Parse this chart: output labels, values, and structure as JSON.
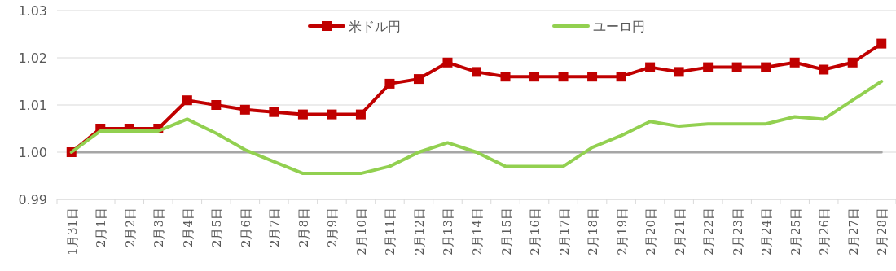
{
  "chart_data": {
    "type": "line",
    "categories": [
      "1月31日",
      "2月1日",
      "2月2日",
      "2月3日",
      "2月4日",
      "2月5日",
      "2月6日",
      "2月7日",
      "2月8日",
      "2月9日",
      "2月10日",
      "2月11日",
      "2月12日",
      "2月13日",
      "2月14日",
      "2月15日",
      "2月16日",
      "2月17日",
      "2月18日",
      "2月19日",
      "2月20日",
      "2月21日",
      "2月22日",
      "2月23日",
      "2月24日",
      "2月25日",
      "2月26日",
      "2月27日",
      "2月28日"
    ],
    "series": [
      {
        "name": "米ドル円",
        "color": "#c00000",
        "marker": "square",
        "values": [
          1.0,
          1.005,
          1.005,
          1.005,
          1.011,
          1.01,
          1.009,
          1.0085,
          1.008,
          1.008,
          1.008,
          1.0145,
          1.0155,
          1.019,
          1.017,
          1.016,
          1.016,
          1.016,
          1.016,
          1.016,
          1.018,
          1.017,
          1.018,
          1.018,
          1.018,
          1.019,
          1.0175,
          1.019,
          1.023
        ]
      },
      {
        "name": "ユーロ円",
        "color": "#92d050",
        "marker": "none",
        "values": [
          1.0,
          1.0045,
          1.0045,
          1.0045,
          1.007,
          1.004,
          1.0005,
          0.998,
          0.9955,
          0.9955,
          0.9955,
          0.997,
          1.0,
          1.002,
          1.0,
          0.997,
          0.997,
          0.997,
          1.001,
          1.0035,
          1.0065,
          1.0055,
          1.006,
          1.006,
          1.006,
          1.0075,
          1.007,
          1.011,
          1.015
        ]
      }
    ],
    "ylim": [
      0.99,
      1.03
    ],
    "yticks": [
      {
        "value": 0.99,
        "label": "0.99"
      },
      {
        "value": 1.0,
        "label": "1.00"
      },
      {
        "value": 1.01,
        "label": "1.01"
      },
      {
        "value": 1.02,
        "label": "1.02"
      },
      {
        "value": 1.03,
        "label": "1.03"
      }
    ],
    "grid": "y",
    "legend": "top",
    "ref_lines": [
      {
        "axis": "y",
        "value": 1.0,
        "color": "#a6a6a6"
      }
    ]
  }
}
